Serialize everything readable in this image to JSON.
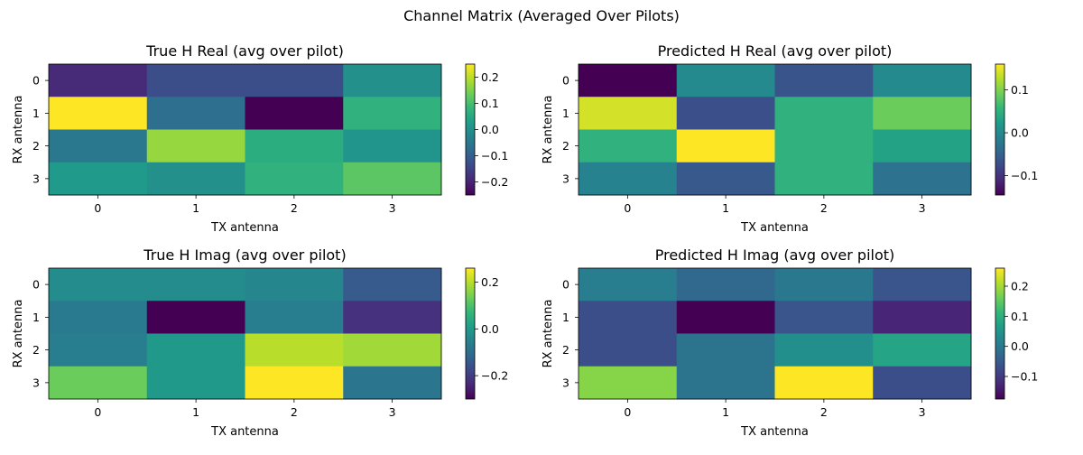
{
  "chart_data": {
    "suptitle": "Channel Matrix (Averaged Over Pilots)",
    "colormap": [
      "#440154",
      "#482878",
      "#3e4989",
      "#31688e",
      "#26828e",
      "#1f9e89",
      "#35b779",
      "#6ece58",
      "#b5de2b",
      "#fde725"
    ],
    "panels": [
      {
        "type": "heatmap",
        "title": "True H Real (avg over pilot)",
        "xlabel": "TX antenna",
        "ylabel": "RX antenna",
        "x_ticks": [
          "0",
          "1",
          "2",
          "3"
        ],
        "y_ticks": [
          "0",
          "1",
          "2",
          "3"
        ],
        "vmin": -0.25,
        "vmax": 0.25,
        "colorbar_ticks": [
          -0.2,
          -0.1,
          0.0,
          0.1,
          0.2
        ],
        "colorbar_tick_labels": [
          "−0.2",
          "−0.1",
          "0.0",
          "0.1",
          "0.2"
        ],
        "values": [
          [
            -0.19,
            -0.13,
            -0.13,
            0.0
          ],
          [
            0.25,
            -0.07,
            -0.25,
            0.07
          ],
          [
            -0.05,
            0.17,
            0.06,
            0.01
          ],
          [
            0.02,
            0.0,
            0.07,
            0.12
          ]
        ]
      },
      {
        "type": "heatmap",
        "title": "Predicted H Real (avg over pilot)",
        "xlabel": "TX antenna",
        "ylabel": "RX antenna",
        "x_ticks": [
          "0",
          "1",
          "2",
          "3"
        ],
        "y_ticks": [
          "0",
          "1",
          "2",
          "3"
        ],
        "vmin": -0.145,
        "vmax": 0.16,
        "colorbar_ticks": [
          -0.1,
          0.0,
          0.1
        ],
        "colorbar_tick_labels": [
          "−0.1",
          "0.0",
          "0.1"
        ],
        "values": [
          [
            -0.145,
            0.0,
            -0.065,
            0.0
          ],
          [
            0.14,
            -0.07,
            0.05,
            0.09
          ],
          [
            0.05,
            0.16,
            0.05,
            0.03
          ],
          [
            -0.01,
            -0.06,
            0.05,
            -0.03
          ]
        ]
      },
      {
        "type": "heatmap",
        "title": "True H Imag (avg over pilot)",
        "xlabel": "TX antenna",
        "ylabel": "RX antenna",
        "x_ticks": [
          "0",
          "1",
          "2",
          "3"
        ],
        "y_ticks": [
          "0",
          "1",
          "2",
          "3"
        ],
        "vmin": -0.3,
        "vmax": 0.26,
        "colorbar_ticks": [
          -0.2,
          0.0,
          0.2
        ],
        "colorbar_tick_labels": [
          "−0.2",
          "0.0",
          "0.2"
        ],
        "values": [
          [
            -0.03,
            -0.03,
            -0.04,
            -0.14
          ],
          [
            -0.07,
            -0.3,
            -0.06,
            -0.22
          ],
          [
            -0.06,
            0.0,
            0.2,
            0.18
          ],
          [
            0.13,
            0.0,
            0.26,
            -0.08
          ]
        ]
      },
      {
        "type": "heatmap",
        "title": "Predicted H Imag (avg over pilot)",
        "xlabel": "TX antenna",
        "ylabel": "RX antenna",
        "x_ticks": [
          "0",
          "1",
          "2",
          "3"
        ],
        "y_ticks": [
          "0",
          "1",
          "2",
          "3"
        ],
        "vmin": -0.175,
        "vmax": 0.26,
        "colorbar_ticks": [
          -0.1,
          0.0,
          0.1,
          0.2
        ],
        "colorbar_tick_labels": [
          "−0.1",
          "0.0",
          "0.1",
          "0.2"
        ],
        "values": [
          [
            0.01,
            -0.03,
            0.0,
            -0.06
          ],
          [
            -0.07,
            -0.175,
            -0.06,
            -0.13
          ],
          [
            -0.07,
            -0.01,
            0.04,
            0.08
          ],
          [
            0.18,
            -0.01,
            0.26,
            -0.07
          ]
        ]
      }
    ]
  }
}
